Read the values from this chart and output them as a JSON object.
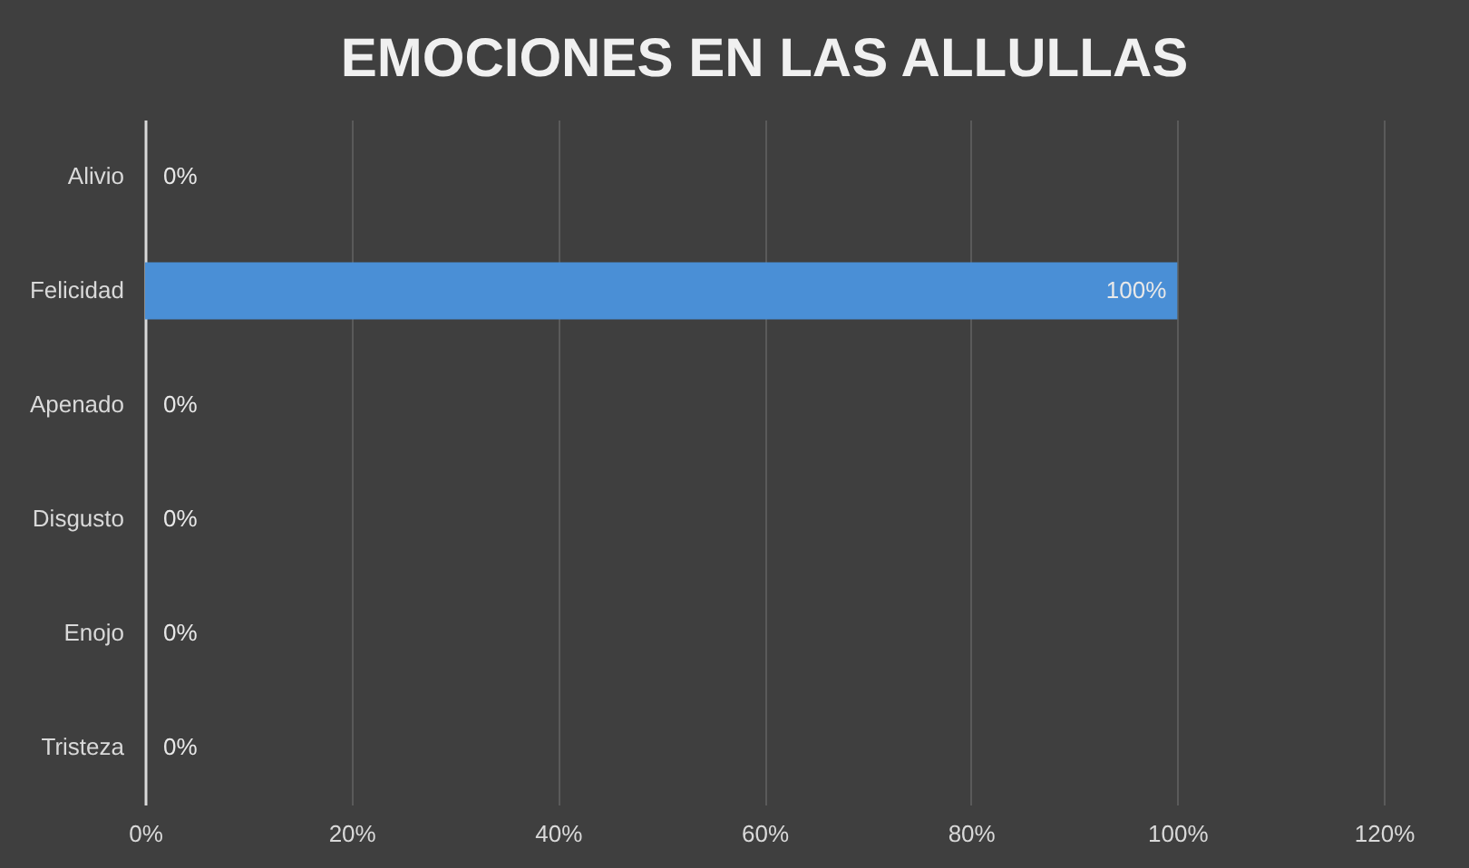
{
  "chart_data": {
    "type": "bar",
    "orientation": "horizontal",
    "title": "EMOCIONES EN LAS ALLULLAS",
    "categories": [
      "Alivio",
      "Felicidad",
      "Apenado",
      "Disgusto",
      "Enojo",
      "Tristeza"
    ],
    "values": [
      0,
      100,
      0,
      0,
      0,
      0
    ],
    "value_labels": [
      "0%",
      "100%",
      "0%",
      "0%",
      "0%",
      "0%"
    ],
    "color": "#4a8fd6",
    "xlim": [
      0,
      120
    ],
    "xticks": [
      {
        "value": 0,
        "label": "0%"
      },
      {
        "value": 20,
        "label": "20%"
      },
      {
        "value": 40,
        "label": "40%"
      },
      {
        "value": 60,
        "label": "60%"
      },
      {
        "value": 80,
        "label": "80%"
      },
      {
        "value": 100,
        "label": "100%"
      },
      {
        "value": 120,
        "label": "120%"
      }
    ],
    "grid": "x"
  }
}
